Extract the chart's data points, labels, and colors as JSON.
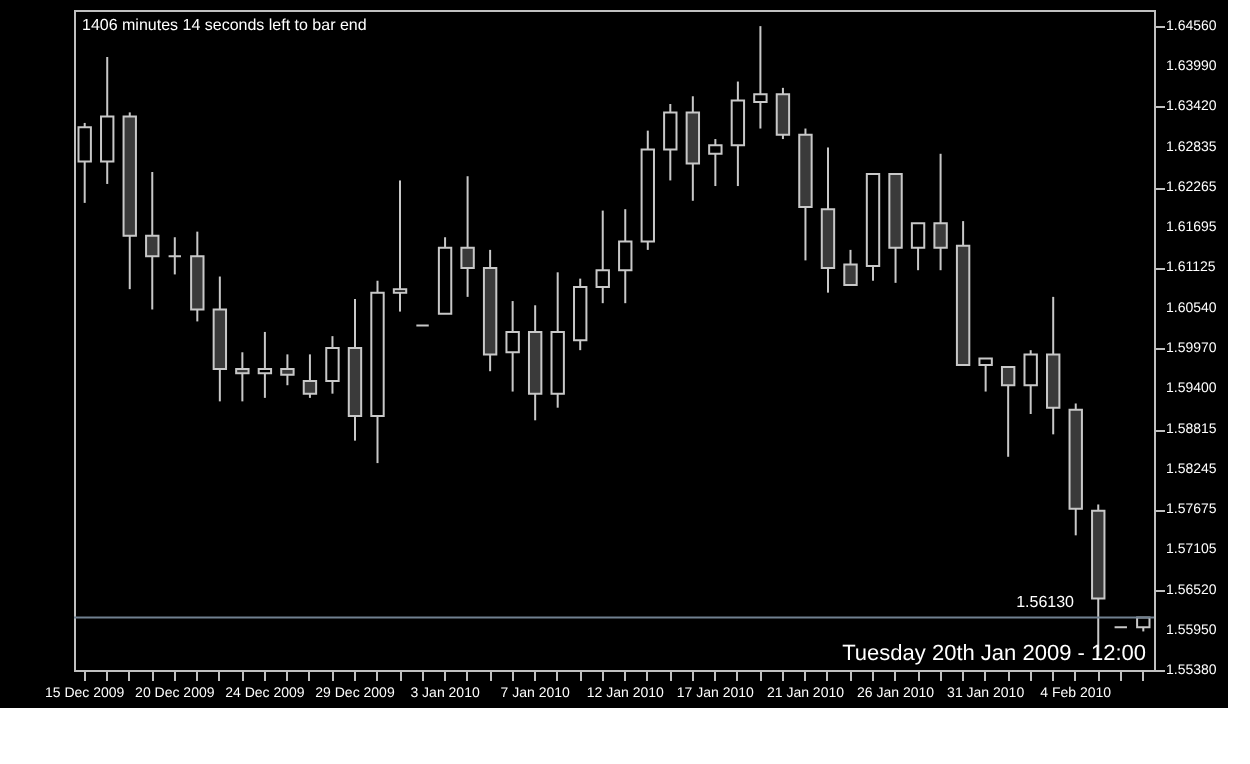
{
  "chart_data": {
    "type": "candlestick",
    "color": "#c8c8c8",
    "categories": [
      "15 Dec 2009",
      null,
      null,
      null,
      "20 Dec 2009",
      null,
      null,
      null,
      "24 Dec 2009",
      null,
      null,
      null,
      "29 Dec 2009",
      null,
      null,
      null,
      "3 Jan 2010",
      null,
      null,
      null,
      "7 Jan 2010",
      null,
      null,
      null,
      "12 Jan 2010",
      null,
      null,
      null,
      "17 Jan 2010",
      null,
      null,
      null,
      "21 Jan 2010",
      null,
      null,
      null,
      "26 Jan 2010",
      null,
      null,
      null,
      "31 Jan 2010",
      null,
      null,
      null,
      "4 Feb 2010",
      null,
      null,
      null
    ],
    "ohlc": [
      [
        1.6263,
        1.6318,
        1.6204,
        1.6312
      ],
      [
        1.6263,
        1.6412,
        1.6231,
        1.6327
      ],
      [
        1.6327,
        1.6333,
        1.6081,
        1.6157
      ],
      [
        1.6157,
        1.6248,
        1.6052,
        1.6128
      ],
      [
        1.6128,
        1.6155,
        1.6102,
        1.6128
      ],
      [
        1.6128,
        1.6163,
        1.6035,
        1.6052
      ],
      [
        1.6052,
        1.6099,
        1.5921,
        1.5967
      ],
      [
        1.5967,
        1.5991,
        1.5921,
        1.5961
      ],
      [
        1.5961,
        1.602,
        1.5926,
        1.5967
      ],
      [
        1.5967,
        1.5988,
        1.5944,
        1.5959
      ],
      [
        1.595,
        1.5988,
        1.5926,
        1.5932
      ],
      [
        1.595,
        1.6014,
        1.5932,
        1.5997
      ],
      [
        1.5997,
        1.6067,
        1.5865,
        1.59
      ],
      [
        1.59,
        1.6093,
        1.5833,
        1.6076
      ],
      [
        1.6076,
        1.6236,
        1.6049,
        1.6081
      ],
      [
        1.6029,
        1.6029,
        1.6029,
        1.6029
      ],
      [
        1.6046,
        1.6155,
        1.6046,
        1.614
      ],
      [
        1.614,
        1.6242,
        1.607,
        1.6111
      ],
      [
        1.6111,
        1.6137,
        1.5964,
        1.5988
      ],
      [
        1.5991,
        1.6064,
        1.5935,
        1.602
      ],
      [
        1.602,
        1.6058,
        1.5894,
        1.5932
      ],
      [
        1.5932,
        1.6105,
        1.5912,
        1.602
      ],
      [
        1.6008,
        1.6096,
        1.5994,
        1.6084
      ],
      [
        1.6084,
        1.6193,
        1.6061,
        1.6108
      ],
      [
        1.6108,
        1.6195,
        1.6061,
        1.6149
      ],
      [
        1.6149,
        1.6307,
        1.6137,
        1.628
      ],
      [
        1.628,
        1.6345,
        1.6236,
        1.6333
      ],
      [
        1.6333,
        1.6356,
        1.6207,
        1.626
      ],
      [
        1.6274,
        1.6295,
        1.6228,
        1.6286
      ],
      [
        1.6286,
        1.6377,
        1.6228,
        1.635
      ],
      [
        1.6348,
        1.6456,
        1.631,
        1.6359
      ],
      [
        1.6359,
        1.6368,
        1.6295,
        1.6301
      ],
      [
        1.6301,
        1.631,
        1.6122,
        1.6198
      ],
      [
        1.6195,
        1.6283,
        1.6076,
        1.6111
      ],
      [
        1.6116,
        1.6137,
        1.6087,
        1.6087
      ],
      [
        1.6114,
        1.6245,
        1.6093,
        1.6245
      ],
      [
        1.6245,
        1.6245,
        1.609,
        1.614
      ],
      [
        1.614,
        1.6175,
        1.6108,
        1.6175
      ],
      [
        1.6175,
        1.6274,
        1.6108,
        1.614
      ],
      [
        1.6143,
        1.6178,
        1.5973,
        1.5973
      ],
      [
        1.5973,
        1.5982,
        1.5935,
        1.5982
      ],
      [
        1.597,
        1.597,
        1.5842,
        1.5944
      ],
      [
        1.5944,
        1.5994,
        1.5903,
        1.5988
      ],
      [
        1.5988,
        1.607,
        1.5874,
        1.5912
      ],
      [
        1.5909,
        1.5918,
        1.573,
        1.5768
      ],
      [
        1.5765,
        1.5774,
        1.5558,
        1.564
      ],
      [
        1.5599,
        1.5599,
        1.5599,
        1.5599
      ],
      [
        1.5599,
        1.5613,
        1.5593,
        1.5613
      ]
    ],
    "ylim": [
      1.5538,
      1.6479
    ],
    "yticks": [
      {
        "value": 1.6456,
        "label": "1.64560"
      },
      {
        "value": 1.6399,
        "label": "1.63990"
      },
      {
        "value": 1.6342,
        "label": "1.63420"
      },
      {
        "value": 1.62835,
        "label": "1.62835"
      },
      {
        "value": 1.62265,
        "label": "1.62265"
      },
      {
        "value": 1.61695,
        "label": "1.61695"
      },
      {
        "value": 1.61125,
        "label": "1.61125"
      },
      {
        "value": 1.6054,
        "label": "1.60540"
      },
      {
        "value": 1.5997,
        "label": "1.59970"
      },
      {
        "value": 1.594,
        "label": "1.59400"
      },
      {
        "value": 1.58815,
        "label": "1.58815"
      },
      {
        "value": 1.58245,
        "label": "1.58245"
      },
      {
        "value": 1.57675,
        "label": "1.57675"
      },
      {
        "value": 1.57105,
        "label": "1.57105"
      },
      {
        "value": 1.5652,
        "label": "1.56520"
      },
      {
        "value": 1.5595,
        "label": "1.55950"
      },
      {
        "value": 1.5538,
        "label": "1.55380"
      }
    ],
    "ref_lines": [
      {
        "axis": "y",
        "value": 1.5613,
        "label": "1.56130",
        "color": "#708090"
      }
    ],
    "annotations": [
      "1406 minutes 14 seconds left to bar end",
      "Tuesday 20th Jan 2009 - 12:00"
    ],
    "grid": false
  }
}
